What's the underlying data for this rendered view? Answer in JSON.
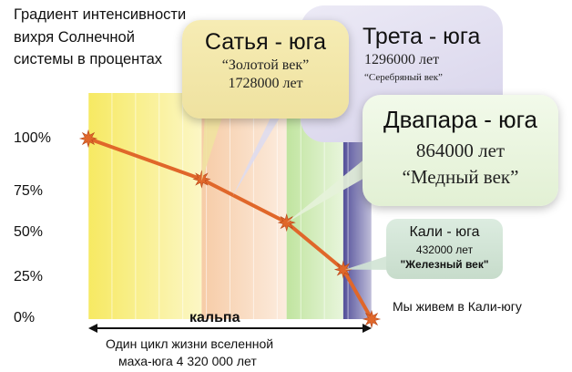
{
  "chart_data": {
    "type": "line",
    "ylabel": "Градиент интенсивности вихря Солнечной системы в процентах",
    "y_ticks": [
      "100%",
      "75%",
      "50%",
      "25%",
      "0%"
    ],
    "ylim": [
      0,
      100
    ],
    "x_unit": "лет",
    "series": [
      {
        "x": [
          0,
          1728000,
          3024000,
          3888000,
          4320000
        ],
        "values": [
          100,
          77.5,
          53.5,
          27.5,
          0
        ]
      }
    ],
    "bands": [
      {
        "from": 0,
        "to": 1728000,
        "color": "#f6e85a"
      },
      {
        "from": 1728000,
        "to": 3024000,
        "color": "#f6c9a2"
      },
      {
        "from": 3024000,
        "to": 3888000,
        "color": "#bde39a"
      },
      {
        "from": 3888000,
        "to": 4320000,
        "color": "#4a4694"
      }
    ],
    "grid": true,
    "line_color": "#e0672a",
    "annotations": {
      "kalpa": "кальпа",
      "cycle_line1": "Один цикл жизни вселенной",
      "cycle_line2": "маха-юга 4 320 000 лет",
      "now": "Мы живем в Кали-югу"
    }
  },
  "yugas": {
    "satya": {
      "title": "Сатья - юга",
      "name": "“Золотой век”",
      "years": "1728000 лет",
      "color": "#f3e6a6"
    },
    "treta": {
      "title": "Трета - юга",
      "years": "1296000 лет",
      "name": "“Серебряный век”",
      "color": "#dedbee"
    },
    "dvapara": {
      "title": "Двапара - юга",
      "years": "864000 лет",
      "name": "“Медный век”",
      "color": "#e6f2da"
    },
    "kali": {
      "title": "Кали - юга",
      "years": "432000 лет",
      "name": "\"Железный век\"",
      "color": "#d0e3d4"
    }
  }
}
